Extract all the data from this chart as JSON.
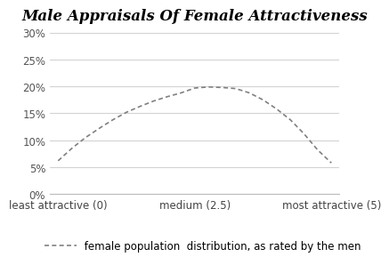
{
  "title": "Male Appraisals Of Female Attractiveness",
  "x_values": [
    0,
    0.25,
    0.5,
    0.75,
    1.0,
    1.25,
    1.5,
    1.75,
    2.0,
    2.25,
    2.5,
    2.75,
    3.0,
    3.25,
    3.5,
    3.75,
    4.0,
    4.25,
    4.5,
    4.75,
    5.0
  ],
  "y_values": [
    0.062,
    0.085,
    0.105,
    0.122,
    0.138,
    0.152,
    0.163,
    0.173,
    0.181,
    0.188,
    0.197,
    0.199,
    0.198,
    0.196,
    0.188,
    0.175,
    0.158,
    0.138,
    0.112,
    0.082,
    0.058
  ],
  "line_color": "#808080",
  "line_width": 1.2,
  "ylim": [
    0,
    0.31
  ],
  "yticks": [
    0.0,
    0.05,
    0.1,
    0.15,
    0.2,
    0.25,
    0.3
  ],
  "ytick_labels": [
    "0%",
    "5%",
    "10%",
    "15%",
    "20%",
    "25%",
    "30%"
  ],
  "xtick_positions": [
    0,
    2.5,
    5.0
  ],
  "xtick_labels": [
    "least attractive (0)",
    "medium (2.5)",
    "most attractive (5)"
  ],
  "legend_text": " female population  distribution, as rated by the men",
  "background_color": "#ffffff",
  "grid_color": "#d3d3d3",
  "title_fontsize": 12,
  "axis_fontsize": 8.5,
  "legend_fontsize": 8.5
}
